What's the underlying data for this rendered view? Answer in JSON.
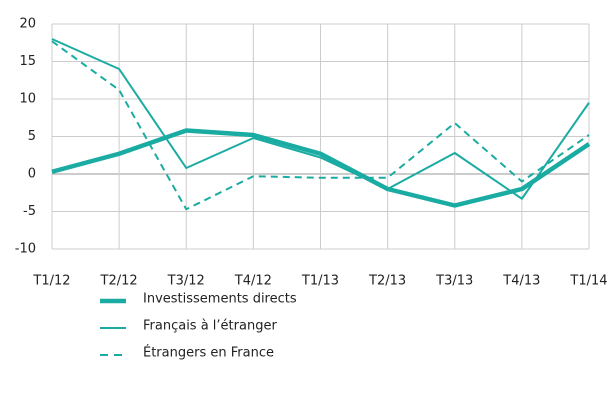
{
  "chart_data": {
    "type": "line",
    "categories": [
      "T1/12",
      "T2/12",
      "T3/12",
      "T4/12",
      "T1/13",
      "T2/13",
      "T3/13",
      "T4/13",
      "T1/14"
    ],
    "series": [
      {
        "name": "Investissements directs",
        "color": "#1aaba2",
        "style": "thick",
        "values": [
          0.3,
          2.7,
          5.8,
          5.2,
          2.7,
          -2,
          -4.2,
          -2,
          4
        ]
      },
      {
        "name": "Français à l’étranger",
        "color": "#1aaba2",
        "style": "solid",
        "values": [
          18,
          14,
          0.8,
          4.8,
          2.2,
          -2,
          2.8,
          -3.3,
          9.5
        ]
      },
      {
        "name": "Étrangers en France",
        "color": "#1aaba2",
        "style": "dashed",
        "values": [
          17.7,
          11.2,
          -4.7,
          -0.3,
          -0.5,
          -0.5,
          6.8,
          -1,
          5.2
        ]
      }
    ],
    "ylim": [
      -10,
      20
    ],
    "yticks": [
      -10,
      -5,
      0,
      5,
      10,
      15,
      20
    ],
    "grid": true
  }
}
